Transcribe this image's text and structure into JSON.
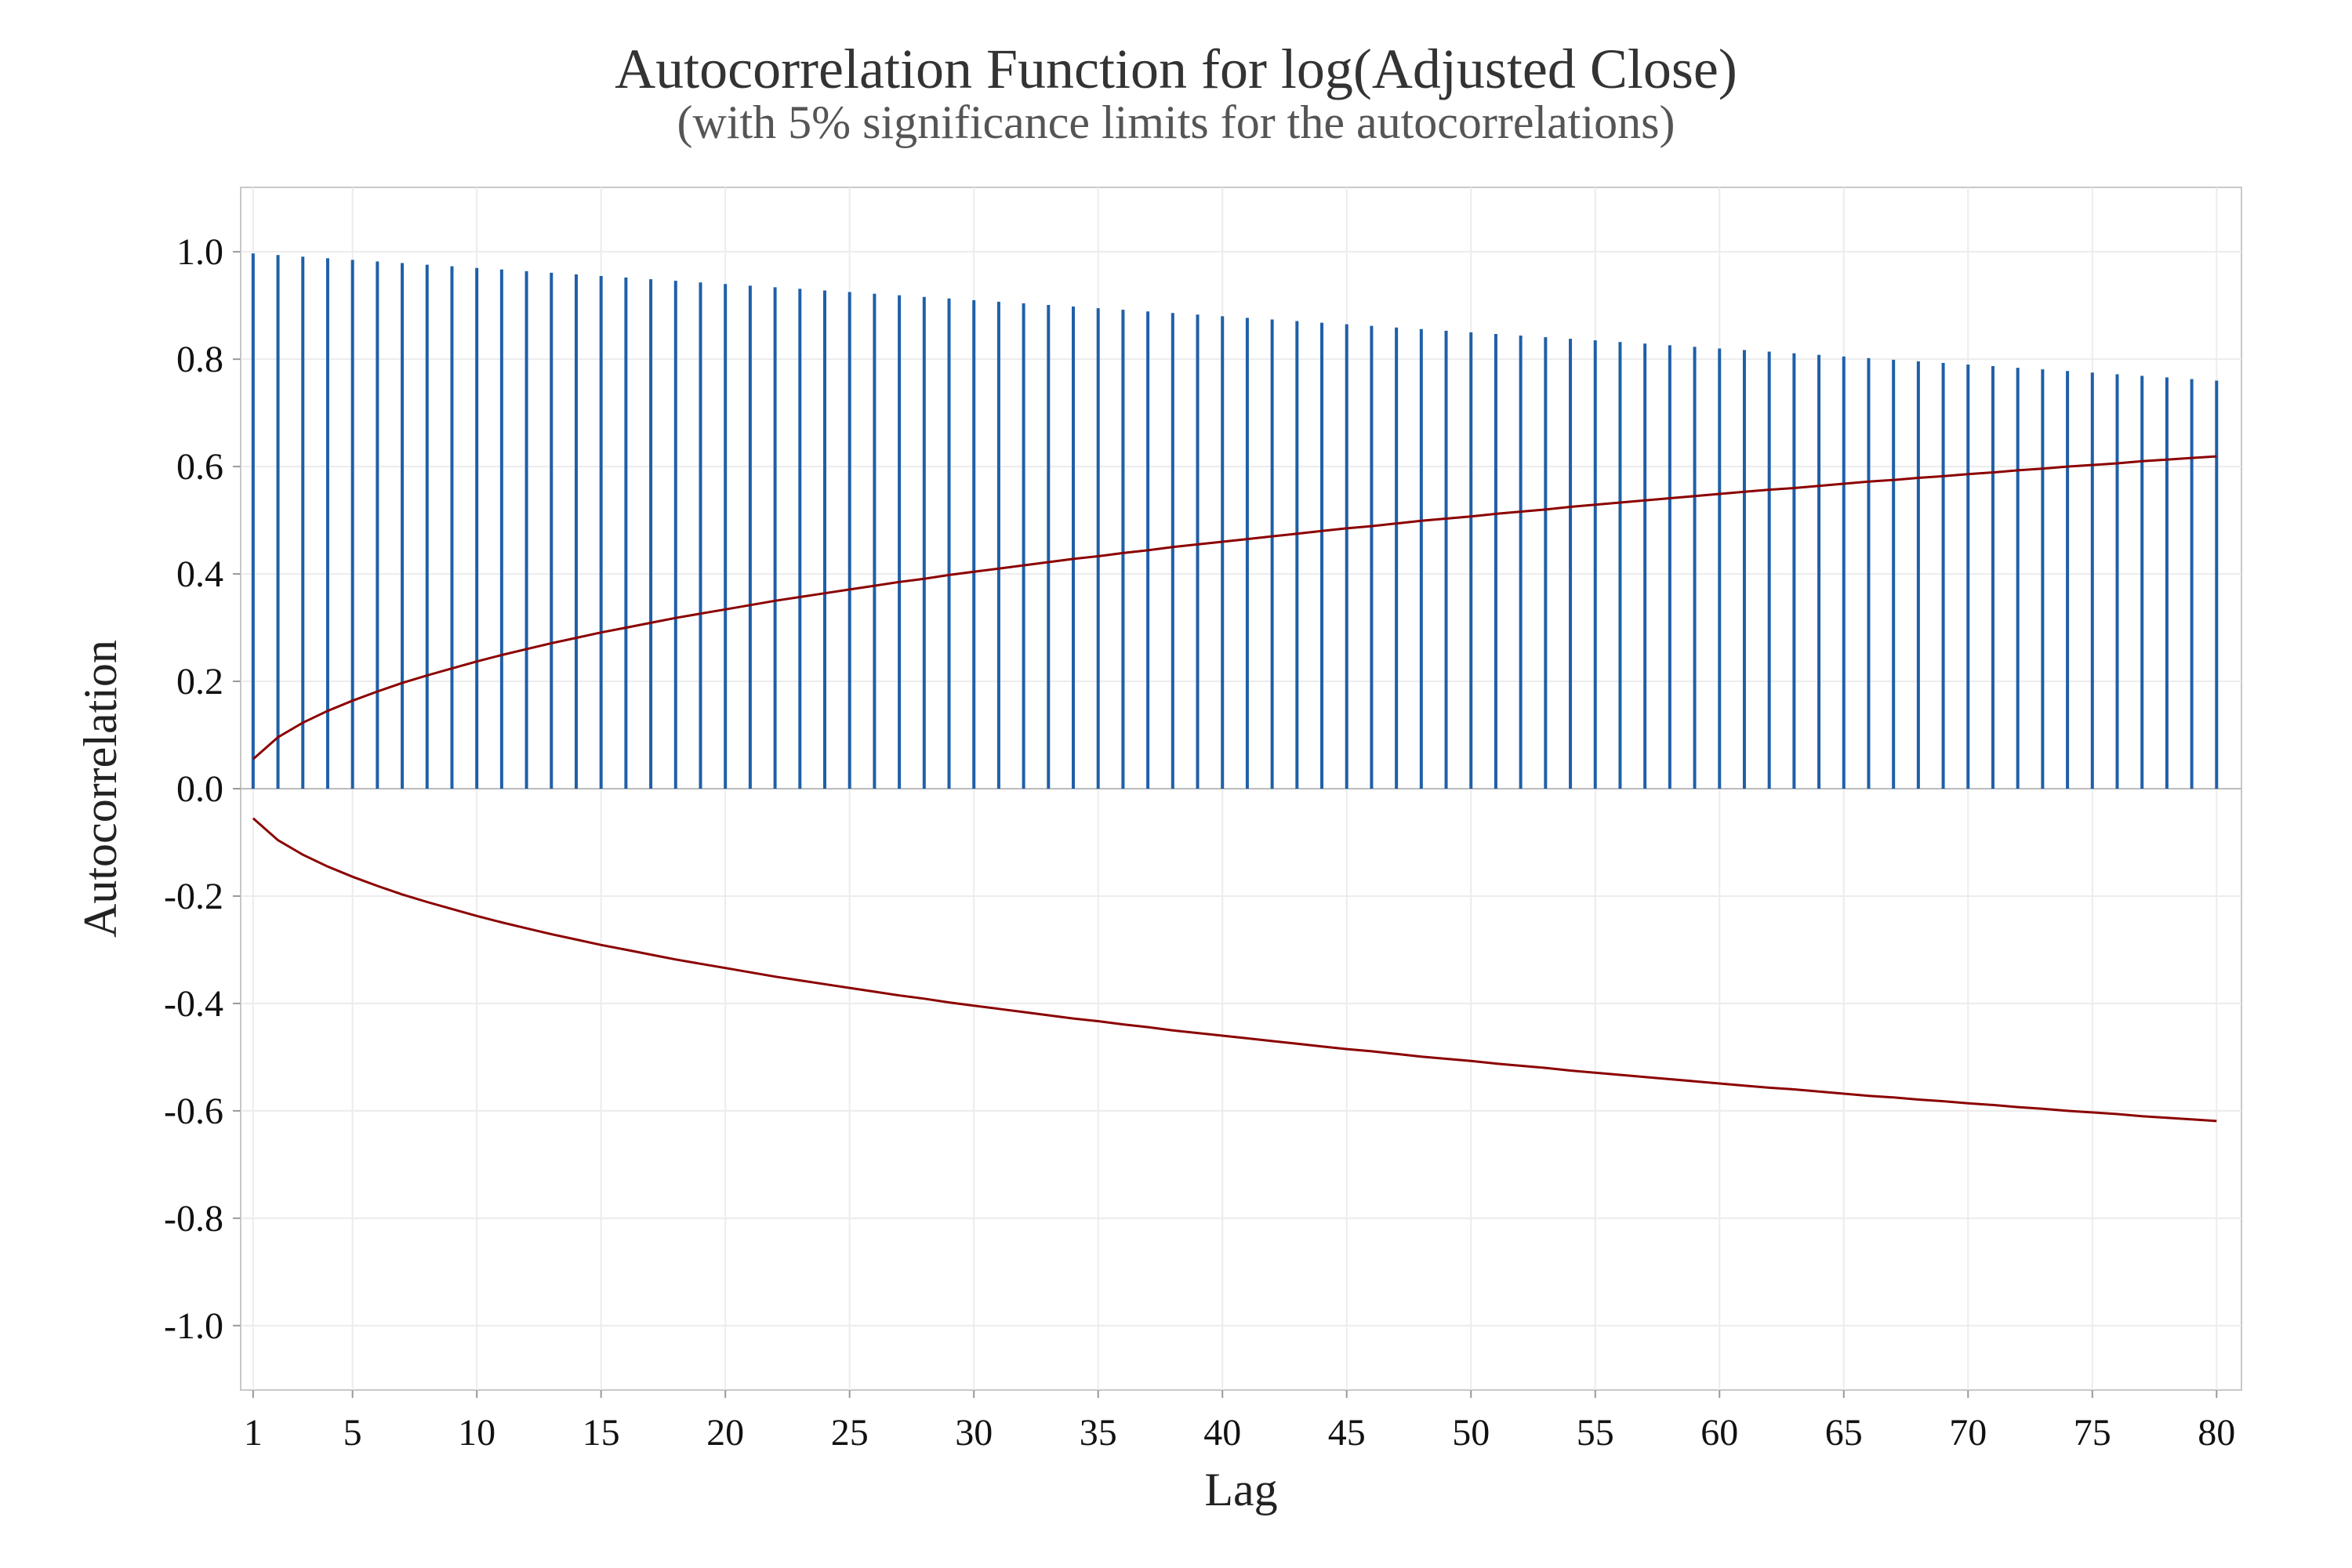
{
  "chart_data": {
    "type": "bar",
    "title": "Autocorrelation Function for log(Adjusted Close)",
    "subtitle": "(with 5% significance limits for the autocorrelations)",
    "xlabel": "Lag",
    "ylabel": "Autocorrelation",
    "xlim": [
      0.5,
      81
    ],
    "ylim": [
      -1.12,
      1.12
    ],
    "x_ticks": [
      1,
      5,
      10,
      15,
      20,
      25,
      30,
      35,
      40,
      45,
      50,
      55,
      60,
      65,
      70,
      75,
      80
    ],
    "y_ticks": [
      1.0,
      0.8,
      0.6,
      0.4,
      0.2,
      0.0,
      -0.2,
      -0.4,
      -0.6,
      -0.8,
      -1.0
    ],
    "y_tick_labels": [
      "1.0",
      "0.8",
      "0.6",
      "0.4",
      "0.2",
      "0.0",
      "-0.2",
      "-0.4",
      "-0.6",
      "-0.8",
      "-1.0"
    ],
    "grid": true,
    "legend": "none",
    "series": [
      {
        "kind": "acf-bars",
        "color": "#1f5fa8",
        "x": [
          1,
          2,
          3,
          4,
          5,
          6,
          7,
          8,
          9,
          10,
          11,
          12,
          13,
          14,
          15,
          16,
          17,
          18,
          19,
          20,
          21,
          22,
          23,
          24,
          25,
          26,
          27,
          28,
          29,
          30,
          31,
          32,
          33,
          34,
          35,
          36,
          37,
          38,
          39,
          40,
          41,
          42,
          43,
          44,
          45,
          46,
          47,
          48,
          49,
          50,
          51,
          52,
          53,
          54,
          55,
          56,
          57,
          58,
          59,
          60,
          61,
          62,
          63,
          64,
          65,
          66,
          67,
          68,
          69,
          70,
          71,
          72,
          73,
          74,
          75,
          76,
          77,
          78,
          79,
          80
        ],
        "values": [
          0.997,
          0.994,
          0.991,
          0.988,
          0.985,
          0.982,
          0.979,
          0.976,
          0.973,
          0.97,
          0.967,
          0.964,
          0.961,
          0.958,
          0.955,
          0.952,
          0.949,
          0.946,
          0.943,
          0.94,
          0.937,
          0.934,
          0.931,
          0.928,
          0.925,
          0.922,
          0.919,
          0.916,
          0.913,
          0.91,
          0.907,
          0.904,
          0.901,
          0.898,
          0.895,
          0.892,
          0.889,
          0.886,
          0.883,
          0.88,
          0.877,
          0.874,
          0.871,
          0.868,
          0.865,
          0.862,
          0.859,
          0.856,
          0.853,
          0.85,
          0.847,
          0.844,
          0.841,
          0.838,
          0.835,
          0.832,
          0.829,
          0.826,
          0.823,
          0.82,
          0.817,
          0.814,
          0.811,
          0.808,
          0.805,
          0.802,
          0.799,
          0.796,
          0.793,
          0.79,
          0.787,
          0.784,
          0.781,
          0.778,
          0.775,
          0.772,
          0.769,
          0.766,
          0.763,
          0.76
        ]
      },
      {
        "kind": "significance-limits",
        "color": "#8b0000",
        "x": [
          1,
          2,
          3,
          4,
          5,
          6,
          7,
          8,
          9,
          10,
          11,
          12,
          13,
          14,
          15,
          16,
          17,
          18,
          19,
          20,
          21,
          22,
          23,
          24,
          25,
          26,
          27,
          28,
          29,
          30,
          31,
          32,
          33,
          34,
          35,
          36,
          37,
          38,
          39,
          40,
          41,
          42,
          43,
          44,
          45,
          46,
          47,
          48,
          49,
          50,
          51,
          52,
          53,
          54,
          55,
          56,
          57,
          58,
          59,
          60,
          61,
          62,
          63,
          64,
          65,
          66,
          67,
          68,
          69,
          70,
          71,
          72,
          73,
          74,
          75,
          76,
          77,
          78,
          79,
          80
        ],
        "upper": [
          0.055,
          0.096,
          0.123,
          0.145,
          0.164,
          0.181,
          0.197,
          0.211,
          0.224,
          0.237,
          0.249,
          0.26,
          0.271,
          0.281,
          0.291,
          0.3,
          0.309,
          0.318,
          0.326,
          0.334,
          0.342,
          0.35,
          0.357,
          0.364,
          0.371,
          0.378,
          0.385,
          0.391,
          0.398,
          0.404,
          0.41,
          0.416,
          0.422,
          0.428,
          0.433,
          0.439,
          0.444,
          0.45,
          0.455,
          0.46,
          0.465,
          0.47,
          0.475,
          0.48,
          0.485,
          0.489,
          0.494,
          0.499,
          0.503,
          0.507,
          0.512,
          0.516,
          0.52,
          0.525,
          0.529,
          0.533,
          0.537,
          0.541,
          0.545,
          0.549,
          0.553,
          0.557,
          0.56,
          0.564,
          0.568,
          0.572,
          0.575,
          0.579,
          0.582,
          0.586,
          0.589,
          0.593,
          0.596,
          0.6,
          0.603,
          0.606,
          0.61,
          0.613,
          0.616,
          0.619
        ],
        "lower": [
          -0.055,
          -0.096,
          -0.123,
          -0.145,
          -0.164,
          -0.181,
          -0.197,
          -0.211,
          -0.224,
          -0.237,
          -0.249,
          -0.26,
          -0.271,
          -0.281,
          -0.291,
          -0.3,
          -0.309,
          -0.318,
          -0.326,
          -0.334,
          -0.342,
          -0.35,
          -0.357,
          -0.364,
          -0.371,
          -0.378,
          -0.385,
          -0.391,
          -0.398,
          -0.404,
          -0.41,
          -0.416,
          -0.422,
          -0.428,
          -0.433,
          -0.439,
          -0.444,
          -0.45,
          -0.455,
          -0.46,
          -0.465,
          -0.47,
          -0.475,
          -0.48,
          -0.485,
          -0.489,
          -0.494,
          -0.499,
          -0.503,
          -0.507,
          -0.512,
          -0.516,
          -0.52,
          -0.525,
          -0.529,
          -0.533,
          -0.537,
          -0.541,
          -0.545,
          -0.549,
          -0.553,
          -0.557,
          -0.56,
          -0.564,
          -0.568,
          -0.572,
          -0.575,
          -0.579,
          -0.582,
          -0.586,
          -0.589,
          -0.593,
          -0.596,
          -0.6,
          -0.603,
          -0.606,
          -0.61,
          -0.613,
          -0.616,
          -0.619
        ]
      }
    ],
    "colors": {
      "bars": "#1f5fa8",
      "limits": "#8b0000",
      "frame": "#c8c8c8",
      "grid": "#ececec",
      "zero_line": "#bbbbbb"
    }
  }
}
